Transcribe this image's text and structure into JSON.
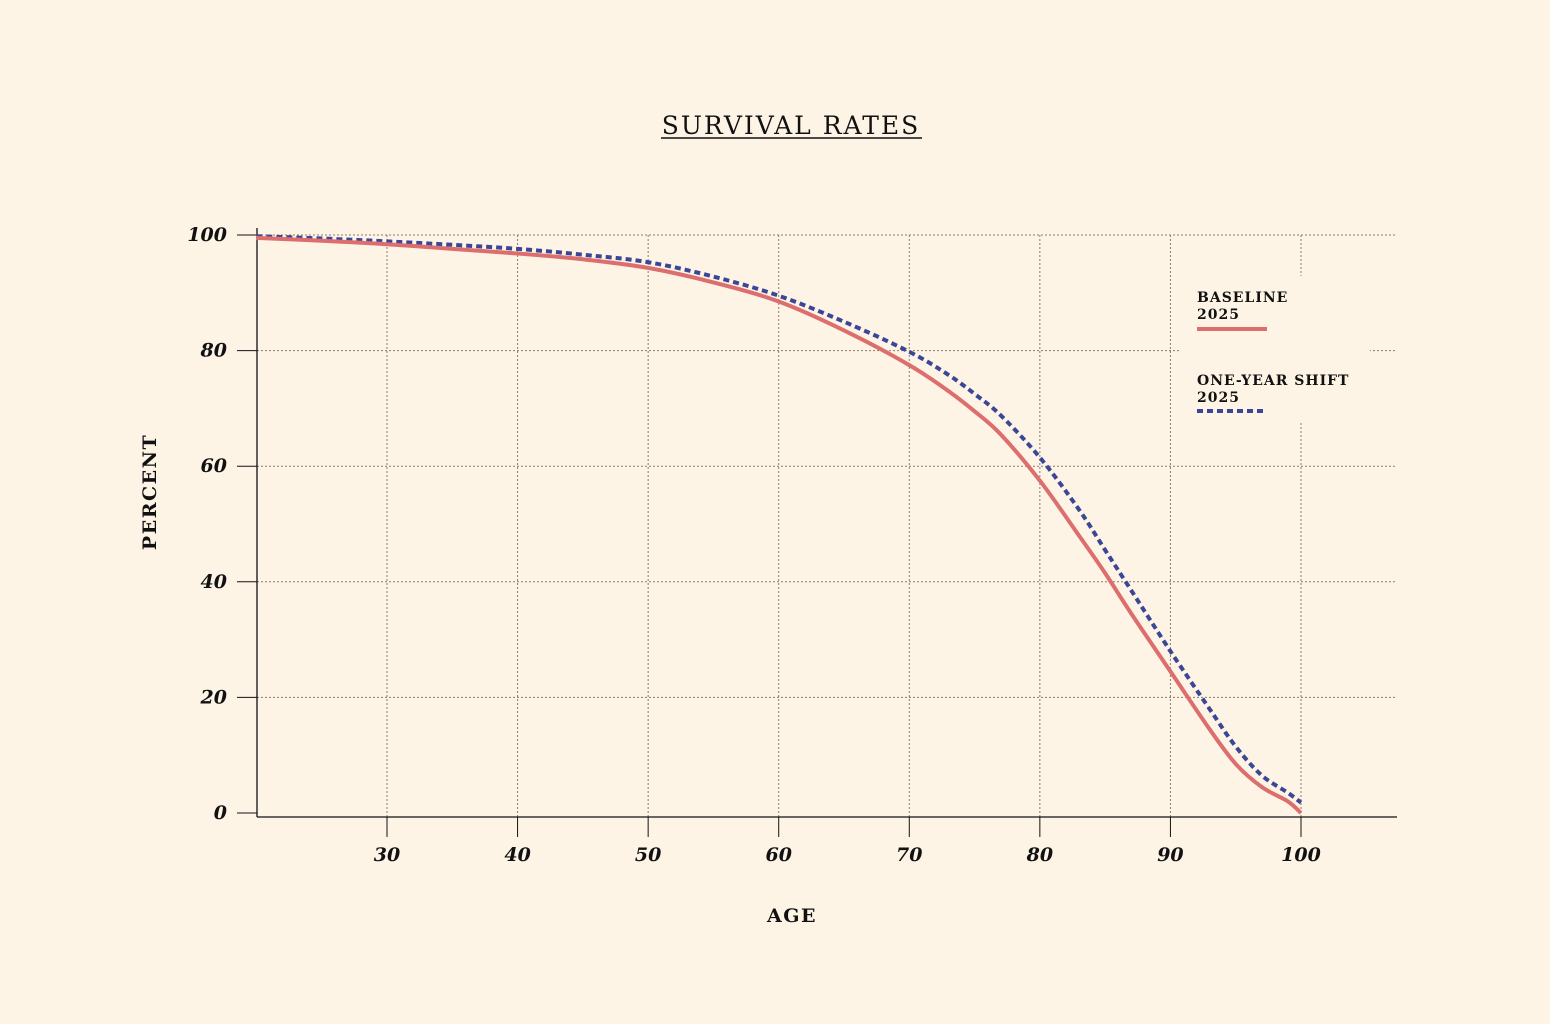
{
  "chart_data": {
    "type": "line",
    "title": "SURVIVAL RATES",
    "xlabel": "AGE",
    "ylabel": "PERCENT",
    "xlim": [
      20,
      107
    ],
    "ylim": [
      0,
      100
    ],
    "xticks": [
      30,
      40,
      50,
      60,
      70,
      80,
      90,
      100
    ],
    "yticks": [
      0,
      20,
      40,
      60,
      80,
      100
    ],
    "grid": true,
    "legend_position": "top-right",
    "colors": {
      "background": "#fdf4e6",
      "baseline": "#dc6e6e",
      "shift": "#3c4696",
      "grid": "#8a7c6c",
      "axis": "#111111"
    },
    "series": [
      {
        "name": "BASELINE",
        "name_line2": "2025",
        "style": "solid",
        "x": [
          20,
          25,
          30,
          35,
          40,
          45,
          50,
          55,
          60,
          65,
          70,
          73,
          75,
          77,
          80,
          83,
          85,
          87,
          90,
          93,
          95,
          97,
          99,
          100
        ],
        "y": [
          99.5,
          99.0,
          98.4,
          97.6,
          96.8,
          95.8,
          94.3,
          91.8,
          88.5,
          83.5,
          77.5,
          73.0,
          69.5,
          65.5,
          57.5,
          48.0,
          41.5,
          34.5,
          24.5,
          14.5,
          8.5,
          4.5,
          2.0,
          0.0
        ]
      },
      {
        "name": "ONE-YEAR SHIFT",
        "name_line2": "2025",
        "style": "dashed",
        "x": [
          20,
          25,
          30,
          35,
          40,
          45,
          50,
          55,
          60,
          65,
          70,
          73,
          75,
          77,
          80,
          83,
          85,
          87,
          90,
          93,
          95,
          97,
          99,
          100
        ],
        "y": [
          99.8,
          99.4,
          98.9,
          98.3,
          97.6,
          96.6,
          95.3,
          92.8,
          89.5,
          85.0,
          79.8,
          75.8,
          72.5,
          68.8,
          61.5,
          52.5,
          45.5,
          38.5,
          28.0,
          18.0,
          11.5,
          6.5,
          3.5,
          1.8
        ]
      }
    ]
  }
}
